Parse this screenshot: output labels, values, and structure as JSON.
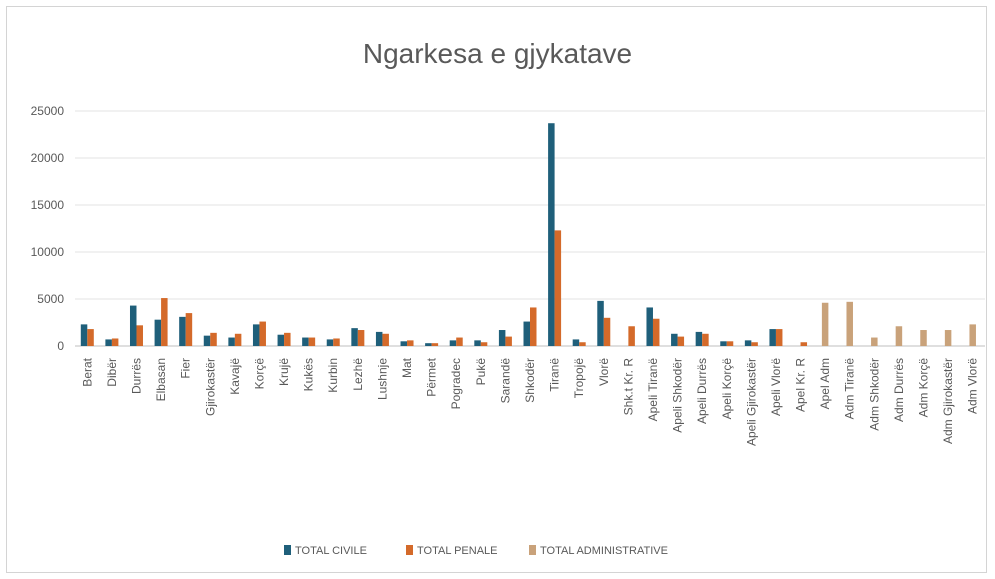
{
  "chart_data": {
    "type": "bar",
    "title": "Ngarkesa e gjykatave",
    "xlabel": "",
    "ylabel": "",
    "ylim": [
      0,
      25000
    ],
    "yticks": [
      0,
      5000,
      10000,
      15000,
      20000,
      25000
    ],
    "grid": true,
    "legend_position": "bottom",
    "categories": [
      "Berat",
      "Dibër",
      "Durrës",
      "Elbasan",
      "Fier",
      "Gjirokastër",
      "Kavajë",
      "Korçë",
      "Krujë",
      "Kukës",
      "Kurbin",
      "Lezhë",
      "Lushnje",
      "Mat",
      "Përmet",
      "Pogradec",
      "Pukë",
      "Sarandë",
      "Shkodër",
      "Tiranë",
      "Tropojë",
      "Vlorë",
      "Shk.t Kr. R",
      "Apeli Tiranë",
      "Apeli Shkodër",
      "Apeli Durrës",
      "Apeli Korçë",
      "Apeli Gjirokastër",
      "Apeli Vlorë",
      "Apel Kr. R",
      "Apel Adm",
      "Adm Tiranë",
      "Adm Shkodër",
      "Adm Durrës",
      "Adm Korçë",
      "Adm Gjirokastër",
      "Adm Vlorë"
    ],
    "series": [
      {
        "name": "TOTAL CIVILE",
        "color": "#1f5f7a",
        "values": [
          2300,
          700,
          4300,
          2800,
          3100,
          1100,
          900,
          2300,
          1200,
          900,
          700,
          1900,
          1500,
          500,
          300,
          600,
          600,
          1700,
          2600,
          23700,
          700,
          4800,
          0,
          4100,
          1300,
          1500,
          500,
          600,
          1800,
          0,
          0,
          0,
          0,
          0,
          0,
          0,
          0
        ]
      },
      {
        "name": "TOTAL PENALE",
        "color": "#d46a2a",
        "values": [
          1800,
          800,
          2200,
          5100,
          3500,
          1400,
          1300,
          2600,
          1400,
          900,
          800,
          1700,
          1300,
          600,
          300,
          900,
          400,
          1000,
          4100,
          12300,
          400,
          3000,
          2100,
          2900,
          1000,
          1300,
          500,
          400,
          1800,
          400,
          0,
          0,
          0,
          0,
          0,
          0,
          0
        ]
      },
      {
        "name": "TOTAL ADMINISTRATIVE",
        "color": "#c9a27a",
        "values": [
          0,
          0,
          0,
          0,
          0,
          0,
          0,
          0,
          0,
          0,
          0,
          0,
          0,
          0,
          0,
          0,
          0,
          0,
          0,
          0,
          0,
          0,
          0,
          0,
          0,
          0,
          0,
          0,
          0,
          0,
          4600,
          4700,
          900,
          2100,
          1700,
          1700,
          2300
        ]
      }
    ]
  }
}
